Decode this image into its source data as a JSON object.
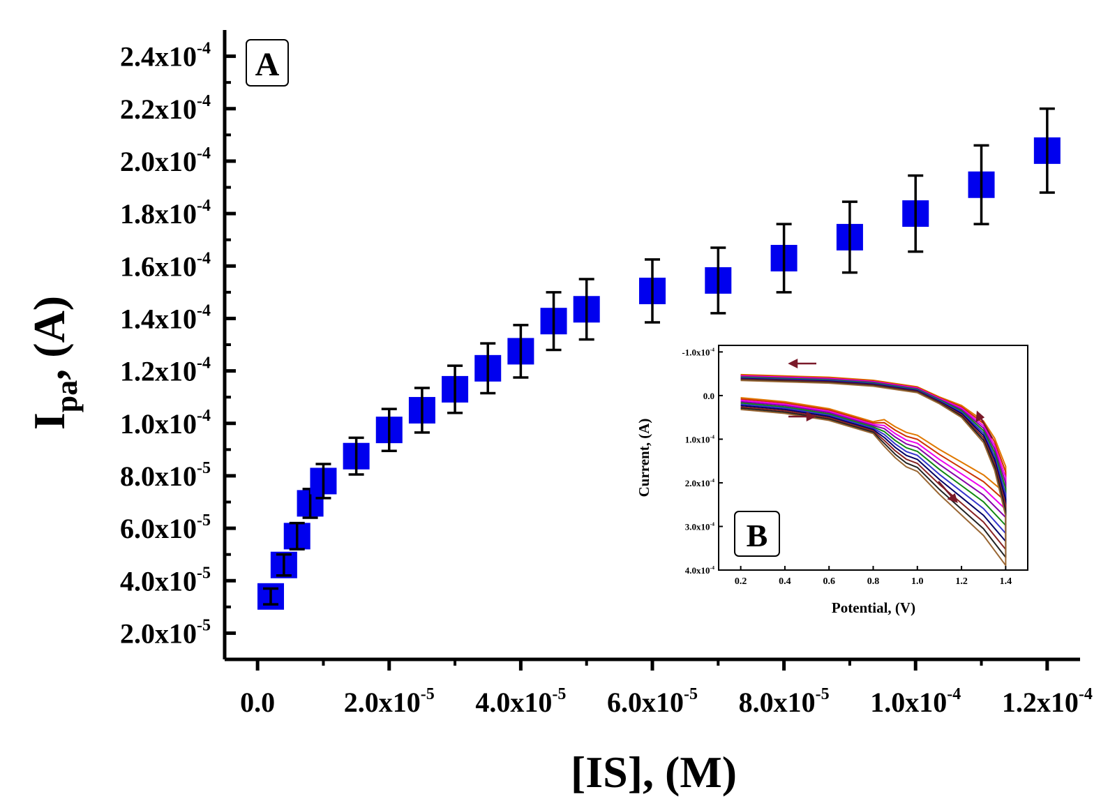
{
  "panel_a_label": "A",
  "panel_b_label": "B",
  "colors": {
    "marker": "#0000ee",
    "axis": "#000000",
    "inset_curves": [
      "#e07800",
      "#cc3300",
      "#ee00ee",
      "#8800aa",
      "#118811",
      "#3333cc",
      "#000066",
      "#882222",
      "#222222",
      "#996633"
    ]
  },
  "chart_data": [
    {
      "id": "main",
      "type": "scatter",
      "ylabel_main": "I",
      "ylabel_sub": "pa",
      "ylabel_rest": ", (A)",
      "xlabel": "[IS], (M)",
      "xlim": [
        -5e-06,
        0.000125
      ],
      "ylim": [
        1e-05,
        0.00025
      ],
      "xticks": [
        {
          "v": 0,
          "m": "0.0",
          "e": ""
        },
        {
          "v": 2e-05,
          "m": "2.0x10",
          "e": "-5"
        },
        {
          "v": 4e-05,
          "m": "4.0x10",
          "e": "-5"
        },
        {
          "v": 6e-05,
          "m": "6.0x10",
          "e": "-5"
        },
        {
          "v": 8e-05,
          "m": "8.0x10",
          "e": "-5"
        },
        {
          "v": 0.0001,
          "m": "1.0x10",
          "e": "-4"
        },
        {
          "v": 0.00012,
          "m": "1.2x10",
          "e": "-4"
        }
      ],
      "yticks": [
        {
          "v": 2e-05,
          "m": "2.0x10",
          "e": "-5"
        },
        {
          "v": 4e-05,
          "m": "4.0x10",
          "e": "-5"
        },
        {
          "v": 6e-05,
          "m": "6.0x10",
          "e": "-5"
        },
        {
          "v": 8e-05,
          "m": "8.0x10",
          "e": "-5"
        },
        {
          "v": 0.0001,
          "m": "1.0x10",
          "e": "-4"
        },
        {
          "v": 0.00012,
          "m": "1.2x10",
          "e": "-4"
        },
        {
          "v": 0.00014,
          "m": "1.4x10",
          "e": "-4"
        },
        {
          "v": 0.00016,
          "m": "1.6x10",
          "e": "-4"
        },
        {
          "v": 0.00018,
          "m": "1.8x10",
          "e": "-4"
        },
        {
          "v": 0.0002,
          "m": "2.0x10",
          "e": "-4"
        },
        {
          "v": 0.00022,
          "m": "2.2x10",
          "e": "-4"
        },
        {
          "v": 0.00024,
          "m": "2.4x10",
          "e": "-4"
        }
      ],
      "series": [
        {
          "name": "Ipa",
          "points": [
            {
              "x": 2e-06,
              "y": 3.4e-05,
              "err": 3e-06
            },
            {
              "x": 4e-06,
              "y": 4.6e-05,
              "err": 4e-06
            },
            {
              "x": 6e-06,
              "y": 5.7e-05,
              "err": 5e-06
            },
            {
              "x": 8e-06,
              "y": 6.95e-05,
              "err": 5.5e-06
            },
            {
              "x": 1e-05,
              "y": 7.8e-05,
              "err": 6.5e-06
            },
            {
              "x": 1.5e-05,
              "y": 8.75e-05,
              "err": 7e-06
            },
            {
              "x": 2e-05,
              "y": 9.75e-05,
              "err": 8e-06
            },
            {
              "x": 2.5e-05,
              "y": 0.000105,
              "err": 8.5e-06
            },
            {
              "x": 3e-05,
              "y": 0.000113,
              "err": 9e-06
            },
            {
              "x": 3.5e-05,
              "y": 0.000121,
              "err": 9.5e-06
            },
            {
              "x": 4e-05,
              "y": 0.0001275,
              "err": 1e-05
            },
            {
              "x": 4.5e-05,
              "y": 0.000139,
              "err": 1.1e-05
            },
            {
              "x": 5e-05,
              "y": 0.0001435,
              "err": 1.15e-05
            },
            {
              "x": 6e-05,
              "y": 0.0001505,
              "err": 1.2e-05
            },
            {
              "x": 7e-05,
              "y": 0.0001545,
              "err": 1.25e-05
            },
            {
              "x": 8e-05,
              "y": 0.000163,
              "err": 1.3e-05
            },
            {
              "x": 9e-05,
              "y": 0.000171,
              "err": 1.35e-05
            },
            {
              "x": 0.0001,
              "y": 0.00018,
              "err": 1.45e-05
            },
            {
              "x": 0.00011,
              "y": 0.000191,
              "err": 1.5e-05
            },
            {
              "x": 0.00012,
              "y": 0.000204,
              "err": 1.6e-05
            }
          ]
        }
      ]
    },
    {
      "id": "inset",
      "type": "line",
      "xlabel": "Potential, (V)",
      "ylabel": "Current, (A)",
      "xlim": [
        0.1,
        1.5
      ],
      "ylim": [
        -0.000115,
        0.0004
      ],
      "xticks": [
        "0.2",
        "0.4",
        "0.6",
        "0.8",
        "1.0",
        "1.2",
        "1.4"
      ],
      "xtick_values": [
        0.2,
        0.4,
        0.6,
        0.8,
        1.0,
        1.2,
        1.4
      ],
      "yticks": [
        {
          "v": -0.0001,
          "m": "-1.0x10",
          "e": "-4"
        },
        {
          "v": 0,
          "m": "0.0",
          "e": ""
        },
        {
          "v": 0.0001,
          "m": "1.0x10",
          "e": "-4"
        },
        {
          "v": 0.0002,
          "m": "2.0x10",
          "e": "-4"
        },
        {
          "v": 0.0003,
          "m": "3.0x10",
          "e": "-4"
        },
        {
          "v": 0.0004,
          "m": "4.0x10",
          "e": "-4"
        }
      ],
      "curves": {
        "count": 10,
        "forward_template": [
          [
            0.2,
            0.05
          ],
          [
            0.4,
            0.14
          ],
          [
            0.6,
            0.3
          ],
          [
            0.8,
            0.6
          ],
          [
            0.85,
            0.85
          ],
          [
            0.9,
            1.1
          ],
          [
            0.95,
            1.3
          ],
          [
            1.0,
            1.4
          ],
          [
            1.1,
            1.9
          ],
          [
            1.2,
            2.35
          ],
          [
            1.3,
            2.8
          ],
          [
            1.4,
            3.45
          ]
        ],
        "reverse_template": [
          [
            1.4,
            2.5
          ],
          [
            1.35,
            1.5
          ],
          [
            1.3,
            0.9
          ],
          [
            1.2,
            0.35
          ],
          [
            1.1,
            0.05
          ],
          [
            1.0,
            -0.2
          ],
          [
            0.8,
            -0.35
          ],
          [
            0.6,
            -0.42
          ],
          [
            0.4,
            -0.45
          ],
          [
            0.2,
            -0.48
          ]
        ],
        "scale_min": 0.65,
        "scale_max": 1.05
      }
    }
  ]
}
